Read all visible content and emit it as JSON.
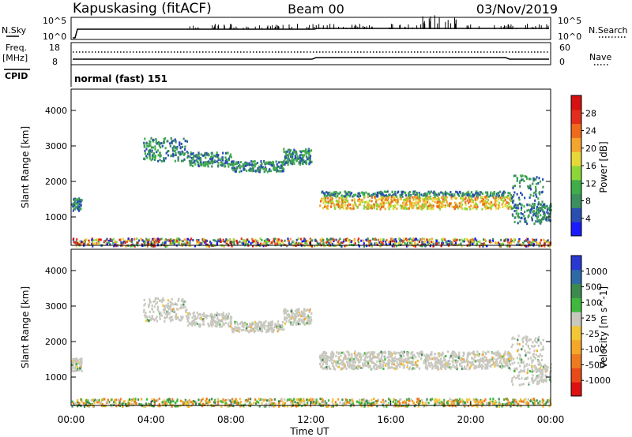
{
  "header": {
    "site": "Kapuskasing (fitACF)",
    "beam": "Beam 00",
    "date": "03/Nov/2019"
  },
  "summary": {
    "nsky_label": "N.Sky",
    "nsky_ticks": [
      "10^5",
      "10^0"
    ],
    "nsearch_label": "N.Search",
    "nsearch_ticks": [
      "10^5",
      "10^0"
    ],
    "freq_label": "Freq.",
    "freq_unit": "[MHz]",
    "freq_ticks": [
      "18",
      "8"
    ],
    "nave_label": "Nave",
    "nave_ticks": [
      "60",
      "0"
    ],
    "cpid_label": "CPID",
    "cpid_value": "normal (fast) 151"
  },
  "chart_data": [
    {
      "type": "heatmap",
      "title": "",
      "ylabel": "Slant Range [km]",
      "ylim": [
        200,
        4600
      ],
      "yticks": [
        1000,
        2000,
        3000,
        4000
      ],
      "xlabel": "Time UT",
      "xlim": [
        0,
        24
      ],
      "xticks": [
        "00:00",
        "04:00",
        "08:00",
        "12:00",
        "16:00",
        "20:00",
        "00:00"
      ],
      "colorbar": {
        "label": "Power [dB]",
        "ticks": [
          "4",
          "8",
          "12",
          "16",
          "20",
          "24",
          "28"
        ],
        "colors": [
          "#1a1aff",
          "#2a4fb0",
          "#3c8f5f",
          "#3fae4a",
          "#8dd63a",
          "#e6d83a",
          "#f3a52d",
          "#ee6a1d",
          "#e32d1d",
          "#d51111"
        ]
      }
    },
    {
      "type": "heatmap",
      "title": "",
      "ylabel": "Slant Range [km]",
      "ylim": [
        200,
        4600
      ],
      "yticks": [
        1000,
        2000,
        3000,
        4000
      ],
      "xlabel": "Time UT",
      "xlim": [
        0,
        24
      ],
      "xticks": [
        "00:00",
        "04:00",
        "08:00",
        "12:00",
        "16:00",
        "20:00",
        "00:00"
      ],
      "colorbar": {
        "label": "Velocity [m s^-1]",
        "ticks": [
          "1000",
          "500",
          "100",
          "25",
          "-25",
          "-100",
          "-500",
          "-1000"
        ],
        "colors": [
          "#2a3ad0",
          "#2f6aa8",
          "#3c8a4d",
          "#3fb83c",
          "#c8c8c0",
          "#f2c636",
          "#f4a72b",
          "#ee7a20",
          "#e84a1a",
          "#dd1111"
        ]
      }
    }
  ]
}
